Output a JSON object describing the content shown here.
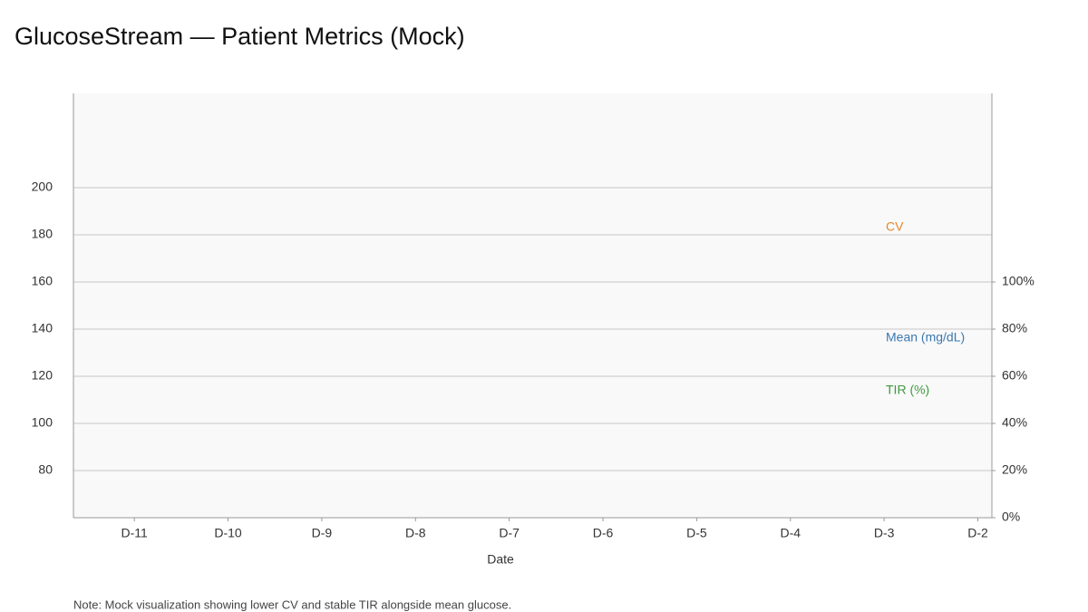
{
  "chart_data": {
    "type": "line",
    "title": "GlucoseStream — Patient Metrics (Mock)",
    "x_label": "Date",
    "note": "Note: Mock visualization showing lower CV and stable TIR alongside mean glucose.",
    "xlim": [
      -11.65,
      -1.85
    ],
    "x": [
      -11,
      -10,
      -9,
      -8,
      -7,
      -6,
      -5,
      -4,
      -3,
      -2
    ],
    "xticks": [
      {
        "value": -11,
        "label": "D-11"
      },
      {
        "value": -10,
        "label": "D-10"
      },
      {
        "value": -9,
        "label": "D-9"
      },
      {
        "value": -8,
        "label": "D-8"
      },
      {
        "value": -7,
        "label": "D-7"
      },
      {
        "value": -6,
        "label": "D-6"
      },
      {
        "value": -5,
        "label": "D-5"
      },
      {
        "value": -4,
        "label": "D-4"
      },
      {
        "value": -3,
        "label": "D-3"
      },
      {
        "value": -2,
        "label": "D-2"
      }
    ],
    "ylim": [
      60,
      240
    ],
    "yticks": [
      80,
      100,
      120,
      140,
      160,
      180,
      200
    ],
    "y2lim": [
      0,
      180
    ],
    "y2ticks": [
      {
        "value": 0,
        "label": "0%"
      },
      {
        "value": 20,
        "label": "20%"
      },
      {
        "value": 40,
        "label": "40%"
      },
      {
        "value": 60,
        "label": "60%"
      },
      {
        "value": 80,
        "label": "80%"
      },
      {
        "value": 100,
        "label": "100%"
      }
    ],
    "grid": true,
    "series": [
      {
        "name": "CV",
        "color": "#e8872a",
        "axis": "y2",
        "values": [
          null,
          null,
          null,
          null,
          null,
          null,
          null,
          null,
          null,
          null
        ]
      },
      {
        "name": "Mean (mg/dL)",
        "color": "#3a78b0",
        "values": [
          null,
          null,
          null,
          null,
          null,
          null,
          null,
          null,
          null,
          null
        ]
      },
      {
        "name": "TIR (%)",
        "color": "#3f9a3f",
        "axis": "y2",
        "values": [
          null,
          null,
          null,
          null,
          null,
          null,
          null,
          null,
          null,
          null
        ]
      }
    ]
  }
}
